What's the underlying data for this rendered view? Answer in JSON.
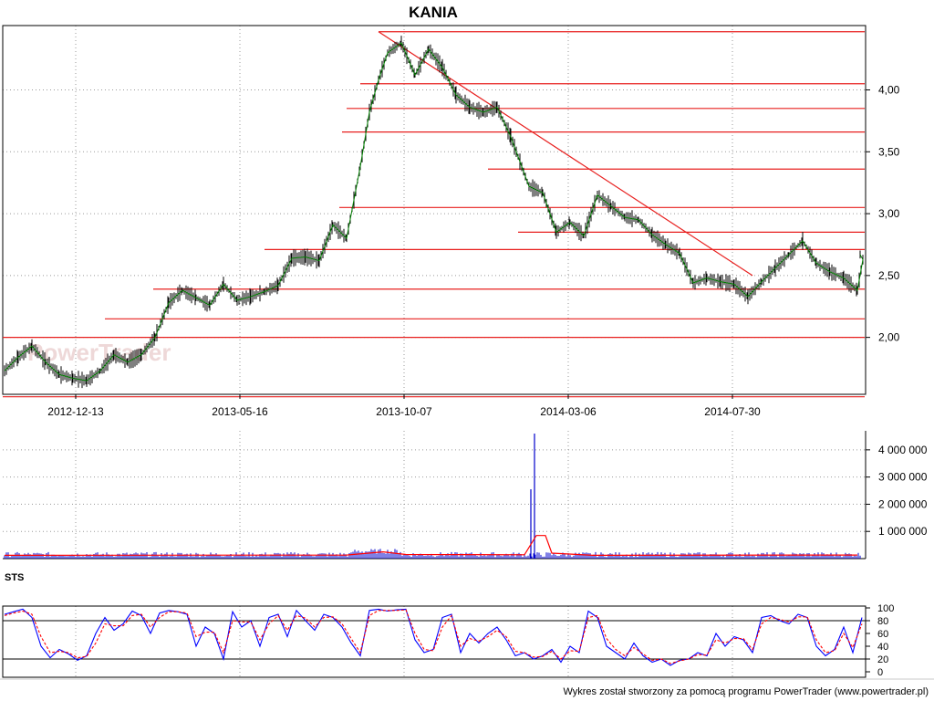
{
  "chart_data": [
    {
      "type": "line",
      "chart_kind": "price-ohlc-with-support-resistance",
      "title": "KANIA",
      "x_tick_labels": [
        "2012-12-13",
        "2013-05-16",
        "2013-10-07",
        "2014-03-06",
        "2014-07-30"
      ],
      "y_tick_labels": [
        "2,00",
        "2,50",
        "3,00",
        "3,50",
        "4,00"
      ],
      "y_ticks": [
        2.0,
        2.5,
        3.0,
        3.5,
        4.0
      ],
      "ylim": [
        1.54,
        4.52
      ],
      "grid": true,
      "watermark": "PowerTrader",
      "series": [
        {
          "color": "#008000",
          "x": [
            0,
            15,
            30,
            45,
            60,
            75,
            90,
            105,
            120,
            135,
            150,
            165,
            180,
            195,
            210,
            225,
            240,
            255,
            270,
            285,
            300,
            315,
            330,
            345,
            360,
            375,
            390,
            400,
            410,
            420,
            435,
            450,
            465,
            480,
            495,
            510,
            525,
            540,
            555,
            565,
            575,
            590,
            605,
            620,
            635,
            650,
            665,
            680,
            695,
            710,
            725,
            740,
            755,
            770,
            785,
            800,
            815,
            830,
            845,
            860,
            875,
            890,
            905,
            920,
            935,
            942
          ],
          "values": [
            1.73,
            1.84,
            1.93,
            1.8,
            1.7,
            1.67,
            1.65,
            1.73,
            1.86,
            1.8,
            1.86,
            2.0,
            2.28,
            2.38,
            2.32,
            2.26,
            2.43,
            2.3,
            2.33,
            2.37,
            2.42,
            2.64,
            2.65,
            2.62,
            2.91,
            2.8,
            3.38,
            3.82,
            4.08,
            4.3,
            4.38,
            4.12,
            4.33,
            4.18,
            3.96,
            3.86,
            3.82,
            3.86,
            3.62,
            3.42,
            3.22,
            3.17,
            2.85,
            2.93,
            2.82,
            3.15,
            3.06,
            2.97,
            2.95,
            2.83,
            2.75,
            2.68,
            2.44,
            2.48,
            2.45,
            2.43,
            2.33,
            2.45,
            2.56,
            2.67,
            2.78,
            2.6,
            2.53,
            2.48,
            2.38,
            2.67
          ]
        }
      ],
      "horizontal_levels": [
        4.47,
        4.05,
        3.85,
        3.66,
        3.36,
        3.05,
        2.85,
        2.71,
        2.39,
        2.15,
        2.0,
        1.52
      ],
      "trend_line": [
        [
          415,
          4.47
        ],
        [
          825,
          2.5
        ]
      ]
    },
    {
      "type": "bar",
      "chart_kind": "volume",
      "y_tick_labels": [
        "1 000 000",
        "2 000 000",
        "3 000 000",
        "4 000 000"
      ],
      "y_ticks": [
        1000000,
        2000000,
        3000000,
        4000000
      ],
      "ylim": [
        0,
        4700000
      ],
      "spikes": [
        [
          582,
          2550000
        ],
        [
          586,
          4600000
        ]
      ],
      "moving_average_color": "#ff0000",
      "bar_color": "#0000cc"
    },
    {
      "type": "line",
      "chart_kind": "stochastic-oscillator",
      "label": "STS",
      "y_tick_labels": [
        "0",
        "20",
        "40",
        "60",
        "80",
        "100"
      ],
      "y_ticks": [
        0,
        20,
        40,
        60,
        80,
        100
      ],
      "ylim": [
        0,
        100
      ],
      "reference_levels": [
        20,
        80
      ],
      "series": [
        {
          "color": "#0000ff",
          "x": [
            0,
            10,
            20,
            30,
            40,
            50,
            60,
            70,
            80,
            90,
            100,
            110,
            120,
            130,
            140,
            150,
            160,
            170,
            180,
            190,
            200,
            210,
            220,
            230,
            240,
            250,
            260,
            270,
            280,
            290,
            300,
            310,
            320,
            330,
            340,
            350,
            360,
            370,
            380,
            390,
            400,
            410,
            420,
            430,
            440,
            450,
            460,
            470,
            480,
            490,
            500,
            510,
            520,
            530,
            540,
            550,
            560,
            570,
            580,
            590,
            600,
            610,
            620,
            630,
            640,
            650,
            660,
            670,
            680,
            690,
            700,
            710,
            720,
            730,
            740,
            750,
            760,
            770,
            780,
            790,
            800,
            810,
            820,
            830,
            840,
            850,
            860,
            870,
            880,
            890,
            900,
            910,
            920,
            930,
            940
          ],
          "values": [
            90,
            94,
            98,
            85,
            40,
            22,
            35,
            28,
            18,
            25,
            60,
            85,
            65,
            75,
            95,
            88,
            60,
            92,
            96,
            94,
            90,
            40,
            70,
            60,
            20,
            94,
            70,
            80,
            40,
            85,
            90,
            55,
            96,
            80,
            65,
            90,
            85,
            70,
            45,
            25,
            96,
            98,
            95,
            97,
            98,
            50,
            30,
            35,
            85,
            90,
            30,
            60,
            45,
            60,
            70,
            50,
            25,
            30,
            20,
            25,
            35,
            15,
            40,
            30,
            95,
            85,
            40,
            30,
            20,
            45,
            25,
            15,
            20,
            10,
            18,
            20,
            30,
            25,
            60,
            40,
            55,
            50,
            30,
            85,
            88,
            80,
            75,
            90,
            85,
            40,
            25,
            35,
            70,
            30,
            85
          ]
        },
        {
          "color": "#ff0000",
          "x": [
            0,
            10,
            20,
            30,
            40,
            50,
            60,
            70,
            80,
            90,
            100,
            110,
            120,
            130,
            140,
            150,
            160,
            170,
            180,
            190,
            200,
            210,
            220,
            230,
            240,
            250,
            260,
            270,
            280,
            290,
            300,
            310,
            320,
            330,
            340,
            350,
            360,
            370,
            380,
            390,
            400,
            410,
            420,
            430,
            440,
            450,
            460,
            470,
            480,
            490,
            500,
            510,
            520,
            530,
            540,
            550,
            560,
            570,
            580,
            590,
            600,
            610,
            620,
            630,
            640,
            650,
            660,
            670,
            680,
            690,
            700,
            710,
            720,
            730,
            740,
            750,
            760,
            770,
            780,
            790,
            800,
            810,
            820,
            830,
            840,
            850,
            860,
            870,
            880,
            890,
            900,
            910,
            920,
            930,
            940
          ],
          "values": [
            88,
            92,
            95,
            90,
            55,
            30,
            32,
            30,
            22,
            24,
            45,
            75,
            72,
            72,
            88,
            90,
            70,
            85,
            94,
            94,
            92,
            55,
            62,
            62,
            30,
            80,
            78,
            78,
            50,
            75,
            88,
            65,
            88,
            84,
            70,
            85,
            86,
            75,
            52,
            30,
            88,
            96,
            96,
            96,
            97,
            60,
            35,
            33,
            70,
            88,
            40,
            52,
            48,
            55,
            65,
            55,
            32,
            30,
            23,
            24,
            32,
            20,
            33,
            32,
            85,
            88,
            52,
            35,
            25,
            38,
            28,
            18,
            20,
            13,
            17,
            20,
            27,
            26,
            50,
            45,
            52,
            52,
            35,
            75,
            85,
            82,
            78,
            86,
            86,
            50,
            30,
            33,
            60,
            38,
            75
          ]
        }
      ]
    }
  ],
  "footer": "Wykres został stworzony za pomocą programu PowerTrader (www.powertrader.pl)"
}
